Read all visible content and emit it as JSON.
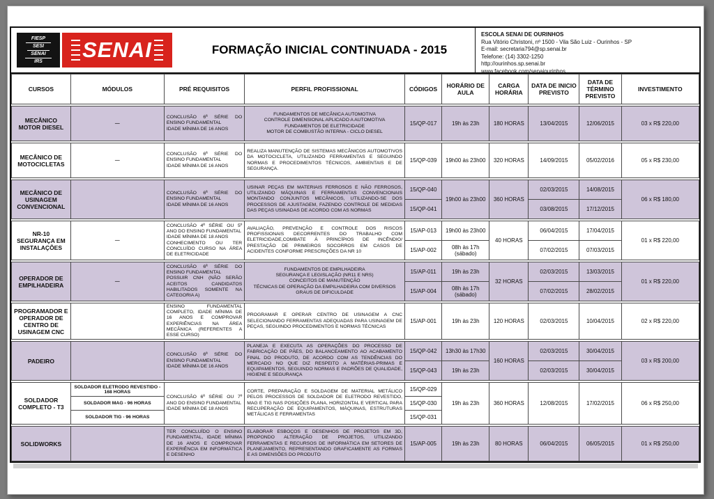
{
  "header": {
    "title": "FORMAÇÃO INICIAL CONTINUADA - 2015",
    "logo": {
      "brand": "SENAI",
      "affiliates": [
        "FIESP",
        "SESI",
        "SENAI",
        "IRS"
      ]
    },
    "school": {
      "name": "ESCOLA SENAI DE OURINHOS",
      "address": "Rua Vitório Christoni, nº 1500 - Vila São Luiz - Ourinhos - SP",
      "email": "E-mail: secretaria794@sp.senai.br",
      "phone": "Telefone: (14) 3302-1250",
      "website": "http://ourinhos.sp.senai.br",
      "facebook": "www.facebook.com/senaiourinhos"
    }
  },
  "colors": {
    "accent_red": "#d8231d",
    "row_shade": "#cfc5da",
    "border_black": "#101010"
  },
  "table": {
    "headers": [
      "CURSOS",
      "MÓDULOS",
      "PRÉ REQUISITOS",
      "PERFIL PROFISSIONAL",
      "CÓDIGOS",
      "HORÁRIO DE AULA",
      "CARGA HORÁRIA",
      "DATA DE INICIO PREVISTO",
      "DATA DE TÉRMINO PREVISTO",
      "INVESTIMENTO"
    ],
    "rows": [
      {
        "curso": "MECÂNICO MOTOR DIESEL",
        "shade": true,
        "modulos": [
          "—"
        ],
        "pre": [
          "CONCLUSÃO 6ª SÉRIE DO ENSINO FUNDAMENTAL",
          "IDADE MÍNIMA DE 16 ANOS"
        ],
        "perfil": [
          "FUNDAMENTOS DE MECÂNICA AUTOMOTIVA",
          "CONTROLE DIMENSIONAL APLICADO A AUTOMOTIVA",
          "FUNDAMENTOS DE ELETRICIDADE",
          "MOTOR DE COMBUSTÃO INTERNA - CICLO DIESEL"
        ],
        "perfil_justify": false,
        "codes": [
          "15/QP-017"
        ],
        "horarios": [
          "19h às 23h"
        ],
        "carga": "180 HORAS",
        "inicios": [
          "13/04/2015"
        ],
        "terminos": [
          "12/06/2015"
        ],
        "investimento": "03 x R$ 220,00"
      },
      {
        "curso": "MECÂNICO DE MOTOCICLETAS",
        "shade": false,
        "modulos": [
          "—"
        ],
        "pre": [
          "CONCLUSÃO 6ª SÉRIE DO ENSINO FUNDAMENTAL",
          "IDADE MÍNIMA DE 16 ANOS"
        ],
        "perfil": [
          "REALIZA MANUTENÇÃO DE SISTEMAS MECÂNICOS AUTOMOTIVOS DA MOTOCICLETA, UTILIZANDO FERRAMENTAS E SEGUINDO NORMAS E PROCEDIMENTOS TÉCNICOS, AMBIENTAIS E DE SEGURANÇA."
        ],
        "perfil_justify": true,
        "codes": [
          "15/QP-039"
        ],
        "horarios": [
          "19h00 às 23h00"
        ],
        "carga": "320 HORAS",
        "inicios": [
          "14/09/2015"
        ],
        "terminos": [
          "05/02/2016"
        ],
        "investimento": "05 x R$ 230,00"
      },
      {
        "curso": "MECÂNICO DE USINAGEM CONVENCIONAL",
        "shade": true,
        "modulos": [
          ""
        ],
        "pre": [
          "CONCLUSÃO 6ª SÉRIE DO ENSINO FUNDAMENTAL",
          "IDADE MÍNIMA DE 16 ANOS"
        ],
        "perfil": [
          "USINAR PEÇAS EM MATERIAIS FERROSOS E NÃO FERROSOS, UTILIZANDO MÁQUINAS E FERRAMENTAS CONVENCIONAIS MONTANDO CONJUNTOS MECÂNICOS, UTILIZANDO-SE DOS PROCESSOS DE AJUSTAGEM, FAZENDO CONTROLE DE MEDIDAS DAS PEÇAS USINADAS DE ACORDO COM AS NORMAS"
        ],
        "perfil_justify": true,
        "codes": [
          "15/QP-040",
          "15/QP-041"
        ],
        "horarios": [
          "19h00 às 23h00"
        ],
        "carga": "360 HORAS",
        "inicios": [
          "02/03/2015",
          "03/08/2015"
        ],
        "terminos": [
          "14/08/2015",
          "17/12/2015"
        ],
        "investimento": "06 x R$ 180,00"
      },
      {
        "curso": "NR-10 SEGURANÇA EM INSTALAÇÕES",
        "shade": false,
        "modulos": [
          "—"
        ],
        "pre": [
          "CONCLUSÃO 4ª SÉRIE OU 5º ANO DO ENSINO FUNDAMENTAL",
          "IDADE MÍNIMA DE 18 ANOS",
          "CONHECIMENTO OU TER CONCLUÍDO CURSO NA ÁREA DE ELETRICIDADE"
        ],
        "perfil": [
          "AVALIAÇÃO, PREVENÇÃO E CONTROLE DOS RISCOS PROFISSIONAIS DECORRENTES DO TRABALHO COM ELETRICIDADE,COMBATE À PRINCÍPIOS DE INCÊNDIO/ PRESTAÇÃO DE PRIMEIROS SOCORROS EM CASOS DE ACIDENTES CONFORME PRESCRIÇÕES DA NR 10"
        ],
        "perfil_justify": true,
        "codes": [
          "15/AP-013",
          "15/AP-002"
        ],
        "horarios": [
          "19h00 às 23h00",
          "08h às 17h (sábado)"
        ],
        "carga": "40 HORAS",
        "inicios": [
          "06/04/2015",
          "07/02/2015"
        ],
        "terminos": [
          "17/04/2015",
          "07/03/2015"
        ],
        "investimento": "01 x R$ 220,00"
      },
      {
        "curso": "OPERADOR DE EMPILHADEIRA",
        "shade": true,
        "modulos": [
          "—"
        ],
        "pre": [
          "CONCLUSÃO 6ª SÉRIE DO ENSINO FUNDAMENTAL",
          "POSSUIR CNH (NÃO SERÃO ACEITOS CANDIDATOS HABILITADOS SOMENTE NA CATEGORIA A)"
        ],
        "perfil": [
          "FUNDAMENTOS DE EMPILHADEIRA",
          "SEGURANÇA E LEGISLAÇÃO (NR11 E NRS)",
          "CONCEITOS DE MANUTENÇÃO",
          "TÉCNICAS DE OPERAÇÃO DA EMPILHADEIRA COM DIVERSOS GRAUS DE DIFICULDADE"
        ],
        "perfil_justify": false,
        "codes": [
          "15/AP-011",
          "15/AP-004"
        ],
        "horarios": [
          "19h às 23h",
          "08h às 17h (sábado)"
        ],
        "carga": "32 HORAS",
        "inicios": [
          "02/03/2015",
          "07/02/2015"
        ],
        "terminos": [
          "13/03/2015",
          "28/02/2015"
        ],
        "investimento": "01 x R$ 220,00"
      },
      {
        "curso": "PROGRAMADOR E OPERADOR DE CENTRO DE USINAGEM CNC",
        "shade": false,
        "modulos": [
          ""
        ],
        "pre": [
          "ENSINO FUNDAMENTAL COMPLETO, IDADE MÍNIMA DE 16 ANOS E COMPROVAR EXPERIÊNCIAS NA ÁREA MECÂNICA (REFERENTES A ESSE CURSO)"
        ],
        "perfil": [
          "PROGRAMAR E OPERAR CENTRO DE USINAGEM A CNC SELECIONANDO FERRAMENTAS ADEQUADAS PARA USINAGEM DE PEÇAS, SEGUINDO PROCEDIMENTOS E NORMAS TÉCNICAS"
        ],
        "perfil_justify": true,
        "codes": [
          "15/AP-001"
        ],
        "horarios": [
          "19h às 23h"
        ],
        "carga": "120 HORAS",
        "inicios": [
          "02/03/2015"
        ],
        "terminos": [
          "10/04/2015"
        ],
        "investimento": "02 x R$ 220,00"
      },
      {
        "curso": "PADEIRO",
        "shade": true,
        "modulos": [
          ""
        ],
        "pre": [
          "CONCLUSÃO 6ª SÉRIE DO ENSINO FUNDAMENTAL",
          "IDADE MÍNIMA DE 16 ANOS"
        ],
        "perfil": [
          "PLANEJA E EXECUTA AS OPERAÇÕES DO PROCESSO DE FABRICAÇÃO DE PÃES, DO BALANCEAMENTO AO ACABAMENTO FINAL DO PRODUTO, DE ACORDO COM AS TENDÊNCIAS DO MERCADO NO QUE DIZ RESPEITO A MATÉRIAS-PRIMAS E EQUIPAMENTOS, SEGUINDO NORMAS E PADRÕES DE QUALIDADE, HIGIENE E SEGURANÇA"
        ],
        "perfil_justify": true,
        "codes": [
          "15/QP-042",
          "15/QP-043"
        ],
        "horarios": [
          "13h30 às 17h30",
          "19h às 23h"
        ],
        "carga": "160 HORAS",
        "inicios": [
          "02/03/2015",
          "02/03/2015"
        ],
        "terminos": [
          "30/04/2015",
          "30/04/2015"
        ],
        "investimento": "03 x R$ 200,00"
      },
      {
        "curso": "SOLDADOR COMPLETO - T3",
        "shade": false,
        "modulos": [
          "SOLDADOR ELETRODO REVESTIDO - 168 HORAS",
          "SOLDADOR MAG - 96 HORAS",
          "SOLDADOR TIG - 96 HORAS"
        ],
        "pre": [
          "CONCLUSÃO 6ª SÉRIE OU 7º ANO DO ENSINO FUNDAMENTAL",
          "IDADE MÍNIMA DE 18 ANOS"
        ],
        "perfil": [
          "CORTE, PREPARAÇÃO E SOLDAGEM DE MATERIAL METÁLICO PELOS PROCESSOS DE SOLDADOR DE ELETRODO REVESTIDO, MAG E TIG NAS POSIÇÕES PLANA, HORIZONTAL E VERTICAL PARA RECUPERAÇÃO DE EQUIPAMENTOS, MÁQUINAS, ESTRUTURAS METÁLICAS E FERRAMENTAS"
        ],
        "perfil_justify": true,
        "codes": [
          "15/QP-029",
          "15/QP-030",
          "15/QP-031"
        ],
        "horarios": [
          "19h às 23h"
        ],
        "carga": "360 HORAS",
        "inicios": [
          "12/08/2015"
        ],
        "terminos": [
          "17/02/2015"
        ],
        "investimento": "06 x R$ 250,00"
      },
      {
        "curso": "SOLIDWORKS",
        "shade": true,
        "modulos": [
          ""
        ],
        "pre": [
          "TER CONCLUÍDO O ENSINO FUNDAMENTAL, IDADE MÍNIMA DE 16 ANOS E COMPROVAR EXPERIÊNCIA EM INFORMÁTICA E DESENHO"
        ],
        "perfil": [
          "ELABORAR ESBOÇOS E DESENHOS DE PROJETOS EM 3D, PROPONDO ALTERAÇÃO DE PROJETOS, UTILIZANDO FERRAMENTAS E RECURSOS DE INFORMÁTICA EM SETORES DE PLANEJAMENTO, REPRESENTANDO GRAFICAMENTE AS FORMAS E AS DIMENSÕES DO PRODUTO"
        ],
        "perfil_justify": true,
        "codes": [
          "15/AP-005"
        ],
        "horarios": [
          "19h às 23h"
        ],
        "carga": "80 HORAS",
        "inicios": [
          "06/04/2015"
        ],
        "terminos": [
          "06/05/2015"
        ],
        "investimento": "01 x R$ 250,00"
      }
    ]
  }
}
